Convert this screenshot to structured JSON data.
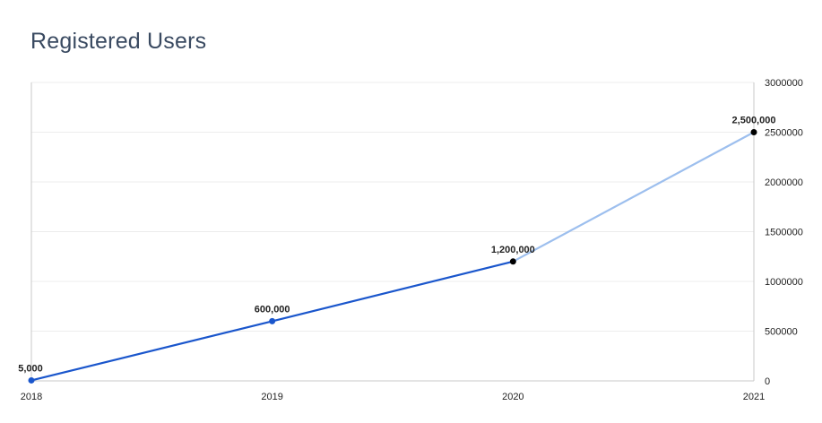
{
  "chart_data": {
    "type": "line",
    "title": "Registered Users",
    "xlabel": "",
    "ylabel": "",
    "x": [
      "2018",
      "2019",
      "2020",
      "2021"
    ],
    "values": [
      5000,
      600000,
      1200000,
      2500000
    ],
    "data_labels": [
      "5,000",
      "600,000",
      "1,200,000",
      "2,500,000"
    ],
    "ylim": [
      0,
      3000000
    ],
    "yticks": [
      "0",
      "500000",
      "1000000",
      "1500000",
      "2000000",
      "2500000",
      "3000000"
    ],
    "y_axis_position": "right",
    "grid": true,
    "colors": {
      "solid_line": "#1a56cc",
      "projected_line": "#9dbfee",
      "actual_marker": "#1a56cc",
      "projected_marker": "#000000",
      "grid": "#ececec",
      "axis": "#c8c8c8",
      "title": "#3a4a61"
    }
  }
}
